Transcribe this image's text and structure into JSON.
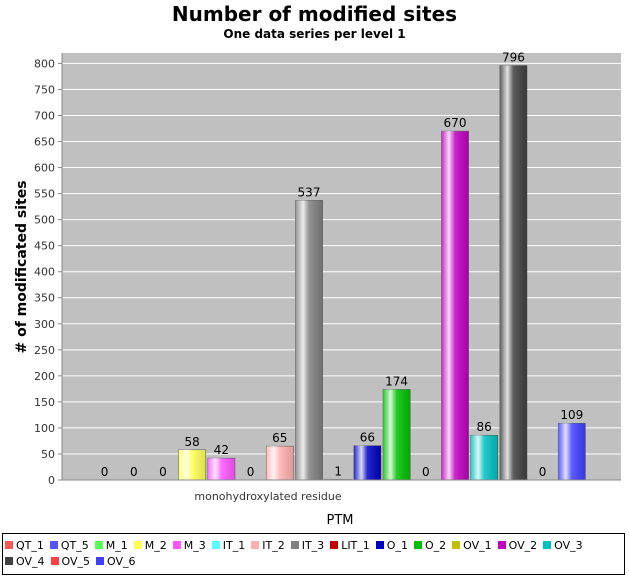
{
  "chart_data": {
    "type": "bar",
    "title": "Number of modified sites",
    "subtitle": "One data series per level 1",
    "xlabel": "PTM",
    "ylabel": "# of modificated sites",
    "categories": [
      "monohydroxylated residue"
    ],
    "ylim": [
      0,
      820
    ],
    "yticks": [
      0,
      50,
      100,
      150,
      200,
      250,
      300,
      350,
      400,
      450,
      500,
      550,
      600,
      650,
      700,
      750,
      800
    ],
    "grid": true,
    "legend_position": "bottom",
    "series": [
      {
        "name": "QT_1",
        "values": [
          0
        ],
        "color": "#ff5555"
      },
      {
        "name": "QT_5",
        "values": [
          0
        ],
        "color": "#5555ff"
      },
      {
        "name": "M_1",
        "values": [
          0
        ],
        "color": "#55ff55"
      },
      {
        "name": "M_2",
        "values": [
          58
        ],
        "color": "#ffff55"
      },
      {
        "name": "M_3",
        "values": [
          42
        ],
        "color": "#ff55ff"
      },
      {
        "name": "IT_1",
        "values": [
          0
        ],
        "color": "#55ffff"
      },
      {
        "name": "IT_2",
        "values": [
          65
        ],
        "color": "#ffafaf"
      },
      {
        "name": "IT_3",
        "values": [
          537
        ],
        "color": "#808080"
      },
      {
        "name": "LIT_1",
        "values": [
          1
        ],
        "color": "#c00000"
      },
      {
        "name": "O_1",
        "values": [
          66
        ],
        "color": "#0000c0"
      },
      {
        "name": "O_2",
        "values": [
          174
        ],
        "color": "#00c000"
      },
      {
        "name": "OV_1",
        "values": [
          0
        ],
        "color": "#c0c000"
      },
      {
        "name": "OV_2",
        "values": [
          670
        ],
        "color": "#c000c0"
      },
      {
        "name": "OV_3",
        "values": [
          86
        ],
        "color": "#00c0c0"
      },
      {
        "name": "OV_4",
        "values": [
          796
        ],
        "color": "#404040"
      },
      {
        "name": "OV_5",
        "values": [
          0
        ],
        "color": "#ff4040"
      },
      {
        "name": "OV_6",
        "values": [
          109
        ],
        "color": "#4040ff"
      }
    ]
  }
}
